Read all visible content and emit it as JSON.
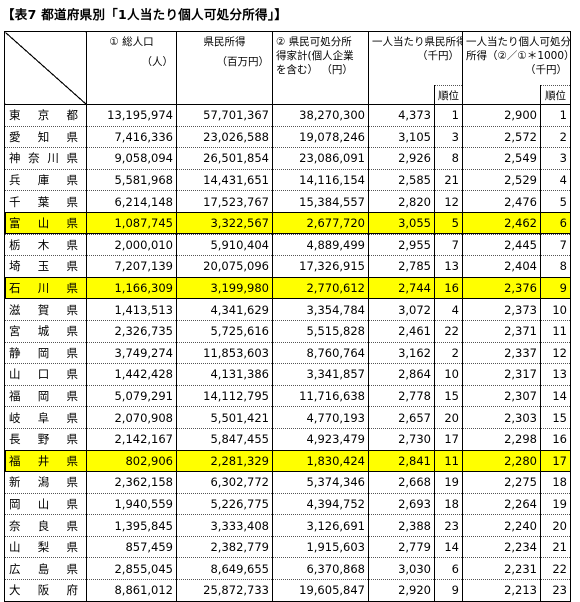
{
  "title": "【表7 都道府県別「1人当たり個人可処分所得」】",
  "header": {
    "col1_line1": "① 総人口",
    "col1_line2": "（人）",
    "col2_line1": "県民所得",
    "col2_line2": "（百万円）",
    "col3_line1": "② 県民可処分所",
    "col3_line2": "得家計(個人企業",
    "col3_line3": "を含む） （円）",
    "col4_line1": "一人当たり県民所得",
    "col4_line2": "（千円）",
    "col5_line1": "一人当たり個人可処分",
    "col5_line2": "所得（②／①＊1000）",
    "col5_line3": "（千円）",
    "rank_label": "順位"
  },
  "rows": [
    {
      "pref": "東京都",
      "pop": "13,195,974",
      "income": "57,701,367",
      "disp": "38,270,300",
      "per_income": "4,373",
      "per_income_rank": "1",
      "per_disp": "2,900",
      "per_disp_rank": "1",
      "hl": false
    },
    {
      "pref": "愛知県",
      "pop": "7,416,336",
      "income": "23,026,588",
      "disp": "19,078,246",
      "per_income": "3,105",
      "per_income_rank": "3",
      "per_disp": "2,572",
      "per_disp_rank": "2",
      "hl": false
    },
    {
      "pref": "神奈川県",
      "pop": "9,058,094",
      "income": "26,501,854",
      "disp": "23,086,091",
      "per_income": "2,926",
      "per_income_rank": "8",
      "per_disp": "2,549",
      "per_disp_rank": "3",
      "hl": false
    },
    {
      "pref": "兵庫県",
      "pop": "5,581,968",
      "income": "14,431,651",
      "disp": "14,116,154",
      "per_income": "2,585",
      "per_income_rank": "21",
      "per_disp": "2,529",
      "per_disp_rank": "4",
      "hl": false
    },
    {
      "pref": "千葉県",
      "pop": "6,214,148",
      "income": "17,523,767",
      "disp": "15,384,557",
      "per_income": "2,820",
      "per_income_rank": "12",
      "per_disp": "2,476",
      "per_disp_rank": "5",
      "hl": false
    },
    {
      "pref": "富山県",
      "pop": "1,087,745",
      "income": "3,322,567",
      "disp": "2,677,720",
      "per_income": "3,055",
      "per_income_rank": "5",
      "per_disp": "2,462",
      "per_disp_rank": "6",
      "hl": true
    },
    {
      "pref": "栃木県",
      "pop": "2,000,010",
      "income": "5,910,404",
      "disp": "4,889,499",
      "per_income": "2,955",
      "per_income_rank": "7",
      "per_disp": "2,445",
      "per_disp_rank": "7",
      "hl": false
    },
    {
      "pref": "埼玉県",
      "pop": "7,207,139",
      "income": "20,075,096",
      "disp": "17,326,915",
      "per_income": "2,785",
      "per_income_rank": "13",
      "per_disp": "2,404",
      "per_disp_rank": "8",
      "hl": false
    },
    {
      "pref": "石川県",
      "pop": "1,166,309",
      "income": "3,199,980",
      "disp": "2,770,612",
      "per_income": "2,744",
      "per_income_rank": "16",
      "per_disp": "2,376",
      "per_disp_rank": "9",
      "hl": true
    },
    {
      "pref": "滋賀県",
      "pop": "1,413,513",
      "income": "4,341,629",
      "disp": "3,354,784",
      "per_income": "3,072",
      "per_income_rank": "4",
      "per_disp": "2,373",
      "per_disp_rank": "10",
      "hl": false
    },
    {
      "pref": "宮城県",
      "pop": "2,326,735",
      "income": "5,725,616",
      "disp": "5,515,828",
      "per_income": "2,461",
      "per_income_rank": "22",
      "per_disp": "2,371",
      "per_disp_rank": "11",
      "hl": false
    },
    {
      "pref": "静岡県",
      "pop": "3,749,274",
      "income": "11,853,603",
      "disp": "8,760,764",
      "per_income": "3,162",
      "per_income_rank": "2",
      "per_disp": "2,337",
      "per_disp_rank": "12",
      "hl": false
    },
    {
      "pref": "山口県",
      "pop": "1,442,428",
      "income": "4,131,386",
      "disp": "3,341,857",
      "per_income": "2,864",
      "per_income_rank": "10",
      "per_disp": "2,317",
      "per_disp_rank": "13",
      "hl": false
    },
    {
      "pref": "福岡県",
      "pop": "5,079,291",
      "income": "14,112,795",
      "disp": "11,716,638",
      "per_income": "2,778",
      "per_income_rank": "15",
      "per_disp": "2,307",
      "per_disp_rank": "14",
      "hl": false
    },
    {
      "pref": "岐阜県",
      "pop": "2,070,908",
      "income": "5,501,421",
      "disp": "4,770,193",
      "per_income": "2,657",
      "per_income_rank": "20",
      "per_disp": "2,303",
      "per_disp_rank": "15",
      "hl": false
    },
    {
      "pref": "長野県",
      "pop": "2,142,167",
      "income": "5,847,455",
      "disp": "4,923,479",
      "per_income": "2,730",
      "per_income_rank": "17",
      "per_disp": "2,298",
      "per_disp_rank": "16",
      "hl": false
    },
    {
      "pref": "福井県",
      "pop": "802,906",
      "income": "2,281,329",
      "disp": "1,830,424",
      "per_income": "2,841",
      "per_income_rank": "11",
      "per_disp": "2,280",
      "per_disp_rank": "17",
      "hl": true
    },
    {
      "pref": "新潟県",
      "pop": "2,362,158",
      "income": "6,302,772",
      "disp": "5,374,346",
      "per_income": "2,668",
      "per_income_rank": "19",
      "per_disp": "2,275",
      "per_disp_rank": "18",
      "hl": false
    },
    {
      "pref": "岡山県",
      "pop": "1,940,559",
      "income": "5,226,775",
      "disp": "4,394,752",
      "per_income": "2,693",
      "per_income_rank": "18",
      "per_disp": "2,264",
      "per_disp_rank": "19",
      "hl": false
    },
    {
      "pref": "奈良県",
      "pop": "1,395,845",
      "income": "3,333,408",
      "disp": "3,126,691",
      "per_income": "2,388",
      "per_income_rank": "23",
      "per_disp": "2,240",
      "per_disp_rank": "20",
      "hl": false
    },
    {
      "pref": "山梨県",
      "pop": "857,459",
      "income": "2,382,779",
      "disp": "1,915,603",
      "per_income": "2,779",
      "per_income_rank": "14",
      "per_disp": "2,234",
      "per_disp_rank": "21",
      "hl": false
    },
    {
      "pref": "広島県",
      "pop": "2,855,045",
      "income": "8,649,655",
      "disp": "6,370,868",
      "per_income": "3,030",
      "per_income_rank": "6",
      "per_disp": "2,231",
      "per_disp_rank": "22",
      "hl": false
    },
    {
      "pref": "大阪府",
      "pop": "8,861,012",
      "income": "25,872,733",
      "disp": "19,605,847",
      "per_income": "2,920",
      "per_income_rank": "9",
      "per_disp": "2,213",
      "per_disp_rank": "23",
      "hl": false
    }
  ]
}
